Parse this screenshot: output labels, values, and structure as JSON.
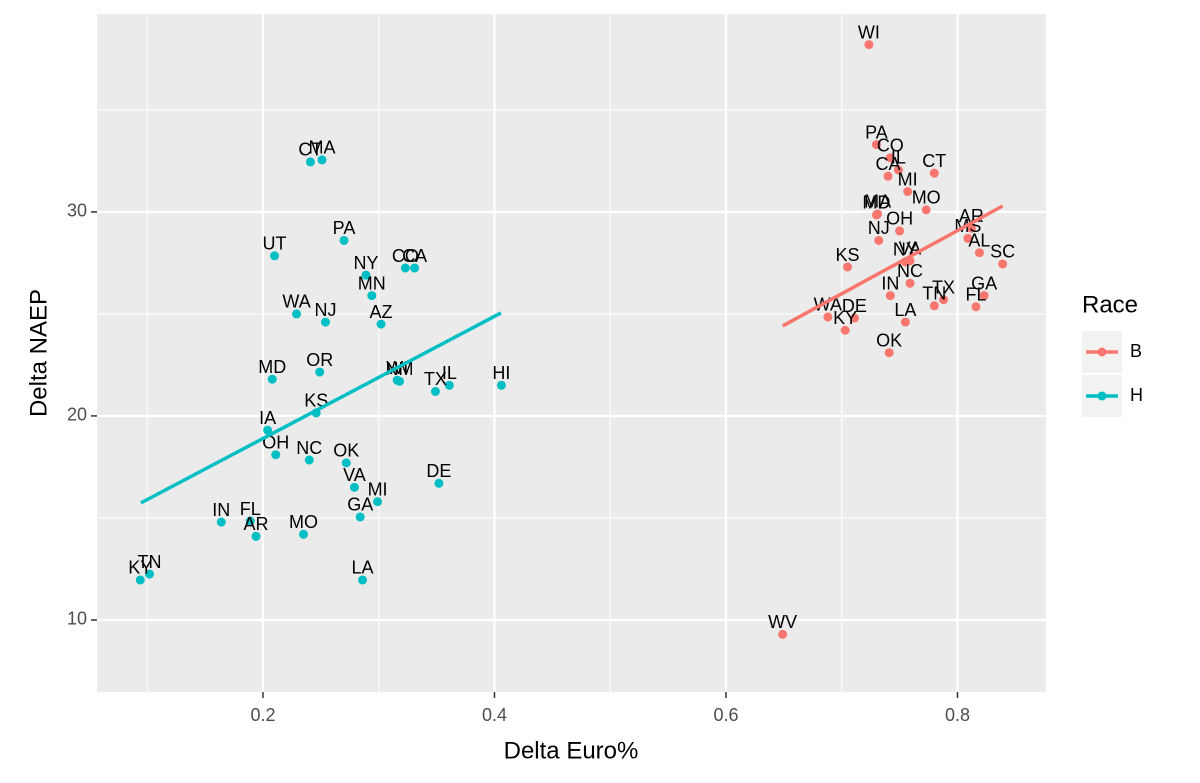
{
  "chart_data": {
    "type": "scatter",
    "xlabel": "Delta Euro%",
    "ylabel": "Delta NAEP",
    "legend_title": "Race",
    "legend_position": "right",
    "grid": true,
    "xlim": [
      0.0566,
      0.8765
    ],
    "ylim": [
      6.47,
      39.7
    ],
    "xticks": [
      0.2,
      0.4,
      0.6,
      0.8
    ],
    "yticks": [
      10,
      20,
      30
    ],
    "series": [
      {
        "name": "B",
        "color": "#F8766D",
        "labels": [
          "WI",
          "PA",
          "CO",
          "CA",
          "IL",
          "CT",
          "MI",
          "MO",
          "MD",
          "MA",
          "OH",
          "NJ",
          "AR",
          "MS",
          "AL",
          "SC",
          "KS",
          "NY",
          "VA",
          "NC",
          "IN",
          "TN",
          "TX",
          "GA",
          "FL",
          "LA",
          "WA",
          "DE",
          "KY",
          "OK",
          "WV"
        ],
        "x": [
          0.7235,
          0.73,
          0.742,
          0.74,
          0.749,
          0.78,
          0.757,
          0.773,
          0.73,
          0.731,
          0.75,
          0.732,
          0.812,
          0.809,
          0.819,
          0.839,
          0.705,
          0.755,
          0.759,
          0.759,
          0.742,
          0.78,
          0.788,
          0.823,
          0.816,
          0.755,
          0.688,
          0.711,
          0.703,
          0.741,
          0.649
        ],
        "values": [
          38.2,
          33.3,
          32.65,
          31.75,
          32.06,
          31.9,
          31.0,
          30.1,
          29.85,
          29.9,
          29.07,
          28.6,
          29.2,
          28.7,
          28.0,
          27.45,
          27.3,
          27.55,
          27.6,
          26.5,
          25.9,
          25.4,
          25.7,
          25.9,
          25.35,
          24.6,
          24.85,
          24.8,
          24.2,
          23.1,
          9.3
        ],
        "fit_x": [
          0.649,
          0.839
        ],
        "fit_y": [
          24.41,
          30.29
        ]
      },
      {
        "name": "H",
        "color": "#00BFC4",
        "labels": [
          "TN",
          "KY",
          "IN",
          "FL",
          "AR",
          "MO",
          "LA",
          "GA",
          "MI",
          "VA",
          "DE",
          "OK",
          "NC",
          "OH",
          "IA",
          "KS",
          "MD",
          "OR",
          "WI",
          "NM",
          "TX",
          "IL",
          "HI",
          "WA",
          "NJ",
          "AZ",
          "MN",
          "NY",
          "CO",
          "CA",
          "PA",
          "UT",
          "CT",
          "MA"
        ],
        "x": [
          0.102,
          0.094,
          0.164,
          0.189,
          0.194,
          0.235,
          0.286,
          0.284,
          0.299,
          0.279,
          0.352,
          0.272,
          0.24,
          0.211,
          0.204,
          0.246,
          0.208,
          0.249,
          0.316,
          0.318,
          0.349,
          0.361,
          0.406,
          0.229,
          0.254,
          0.302,
          0.294,
          0.289,
          0.323,
          0.331,
          0.27,
          0.21,
          0.241,
          0.251
        ],
        "values": [
          12.25,
          11.96,
          14.8,
          14.85,
          14.1,
          14.2,
          11.96,
          15.05,
          15.8,
          16.5,
          16.7,
          17.7,
          17.84,
          18.1,
          19.3,
          20.15,
          21.8,
          22.15,
          21.75,
          21.7,
          21.2,
          21.5,
          21.5,
          25.0,
          24.6,
          24.5,
          25.9,
          26.9,
          27.25,
          27.25,
          28.6,
          27.85,
          32.45,
          32.55
        ],
        "fit_x": [
          0.0946,
          0.4056
        ],
        "fit_y": [
          15.74,
          25.05
        ]
      }
    ]
  }
}
